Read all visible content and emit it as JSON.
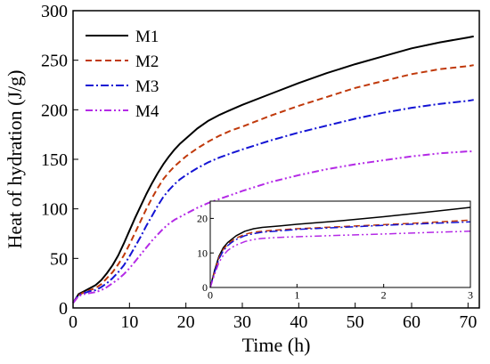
{
  "chart_data": [
    {
      "type": "line",
      "title": "",
      "xlabel": "Time (h)",
      "ylabel": "Heat of hydration (J/g)",
      "xlim": [
        0,
        72
      ],
      "ylim": [
        0,
        300
      ],
      "xticks": [
        0,
        10,
        20,
        30,
        40,
        50,
        60,
        70
      ],
      "yticks": [
        0,
        50,
        100,
        150,
        200,
        250,
        300
      ],
      "grid": false,
      "legend_position": "top-left",
      "x": [
        0,
        1,
        2,
        3,
        4,
        5,
        6,
        7,
        8,
        9,
        10,
        11,
        12,
        13,
        14,
        15,
        16,
        17,
        18,
        19,
        20,
        22,
        24,
        26,
        28,
        30,
        35,
        40,
        45,
        50,
        55,
        60,
        65,
        70,
        71
      ],
      "series": [
        {
          "name": "M1",
          "color": "#000000",
          "dash": "solid",
          "values": [
            5,
            14,
            17,
            20,
            23,
            28,
            35,
            43,
            53,
            65,
            78,
            91,
            103,
            115,
            126,
            136,
            145,
            153,
            160,
            166,
            171,
            181,
            189,
            195,
            200,
            205,
            216,
            227,
            237,
            246,
            254,
            262,
            268,
            273,
            274
          ]
        },
        {
          "name": "M2",
          "color": "#c0390b",
          "dash": "dashed",
          "values": [
            5,
            13,
            16,
            18,
            20,
            24,
            30,
            36,
            44,
            53,
            64,
            76,
            88,
            100,
            111,
            121,
            130,
            137,
            143,
            148,
            153,
            161,
            168,
            174,
            179,
            183,
            194,
            204,
            213,
            222,
            229,
            236,
            241,
            244,
            245
          ]
        },
        {
          "name": "M3",
          "color": "#1414d4",
          "dash": "dash-dot",
          "values": [
            5,
            13,
            15,
            17,
            18,
            21,
            25,
            30,
            36,
            43,
            52,
            62,
            72,
            83,
            93,
            103,
            112,
            119,
            125,
            130,
            134,
            141,
            147,
            152,
            156,
            160,
            169,
            177,
            184,
            191,
            197,
            202,
            206,
            209,
            210
          ]
        },
        {
          "name": "M4",
          "color": "#b42ae6",
          "dash": "dash-dot-dot",
          "values": [
            5,
            12,
            14,
            15,
            16,
            18,
            21,
            25,
            29,
            34,
            40,
            47,
            54,
            61,
            68,
            74,
            80,
            85,
            89,
            92,
            95,
            101,
            106,
            110,
            114,
            118,
            127,
            134,
            140,
            145,
            149,
            153,
            156,
            158,
            158
          ]
        }
      ]
    },
    {
      "type": "line",
      "title": "",
      "xlabel": "",
      "ylabel": "",
      "xlim": [
        0,
        3
      ],
      "ylim": [
        0,
        25
      ],
      "xticks": [
        0,
        1,
        2,
        3
      ],
      "yticks": [
        0,
        10,
        20
      ],
      "grid": false,
      "position": "inset-bottom-right",
      "x": [
        0,
        0.05,
        0.1,
        0.15,
        0.2,
        0.25,
        0.3,
        0.4,
        0.5,
        0.6,
        0.8,
        1,
        1.5,
        2,
        2.5,
        3
      ],
      "series": [
        {
          "color": "#000000",
          "dash": "solid",
          "values": [
            0,
            5,
            9,
            11.5,
            13,
            14,
            15,
            16.3,
            17,
            17.4,
            17.8,
            18.3,
            19.3,
            20.5,
            21.8,
            23.2
          ]
        },
        {
          "color": "#c0390b",
          "dash": "dashed",
          "values": [
            0,
            4.6,
            8.6,
            11,
            12.5,
            13.5,
            14.3,
            15.4,
            16,
            16.3,
            16.7,
            17,
            17.6,
            18.2,
            18.8,
            19.5
          ]
        },
        {
          "color": "#1414d4",
          "dash": "dash-dot",
          "values": [
            0,
            4.4,
            8.2,
            10.6,
            12.1,
            13.1,
            13.9,
            15,
            15.6,
            16,
            16.4,
            16.8,
            17.4,
            18,
            18.5,
            19
          ]
        },
        {
          "color": "#b42ae6",
          "dash": "dash-dot-dot",
          "values": [
            0,
            3.8,
            7.2,
            9.3,
            10.7,
            11.6,
            12.3,
            13.3,
            13.9,
            14.2,
            14.5,
            14.7,
            15.1,
            15.5,
            15.9,
            16.3
          ]
        }
      ]
    }
  ]
}
